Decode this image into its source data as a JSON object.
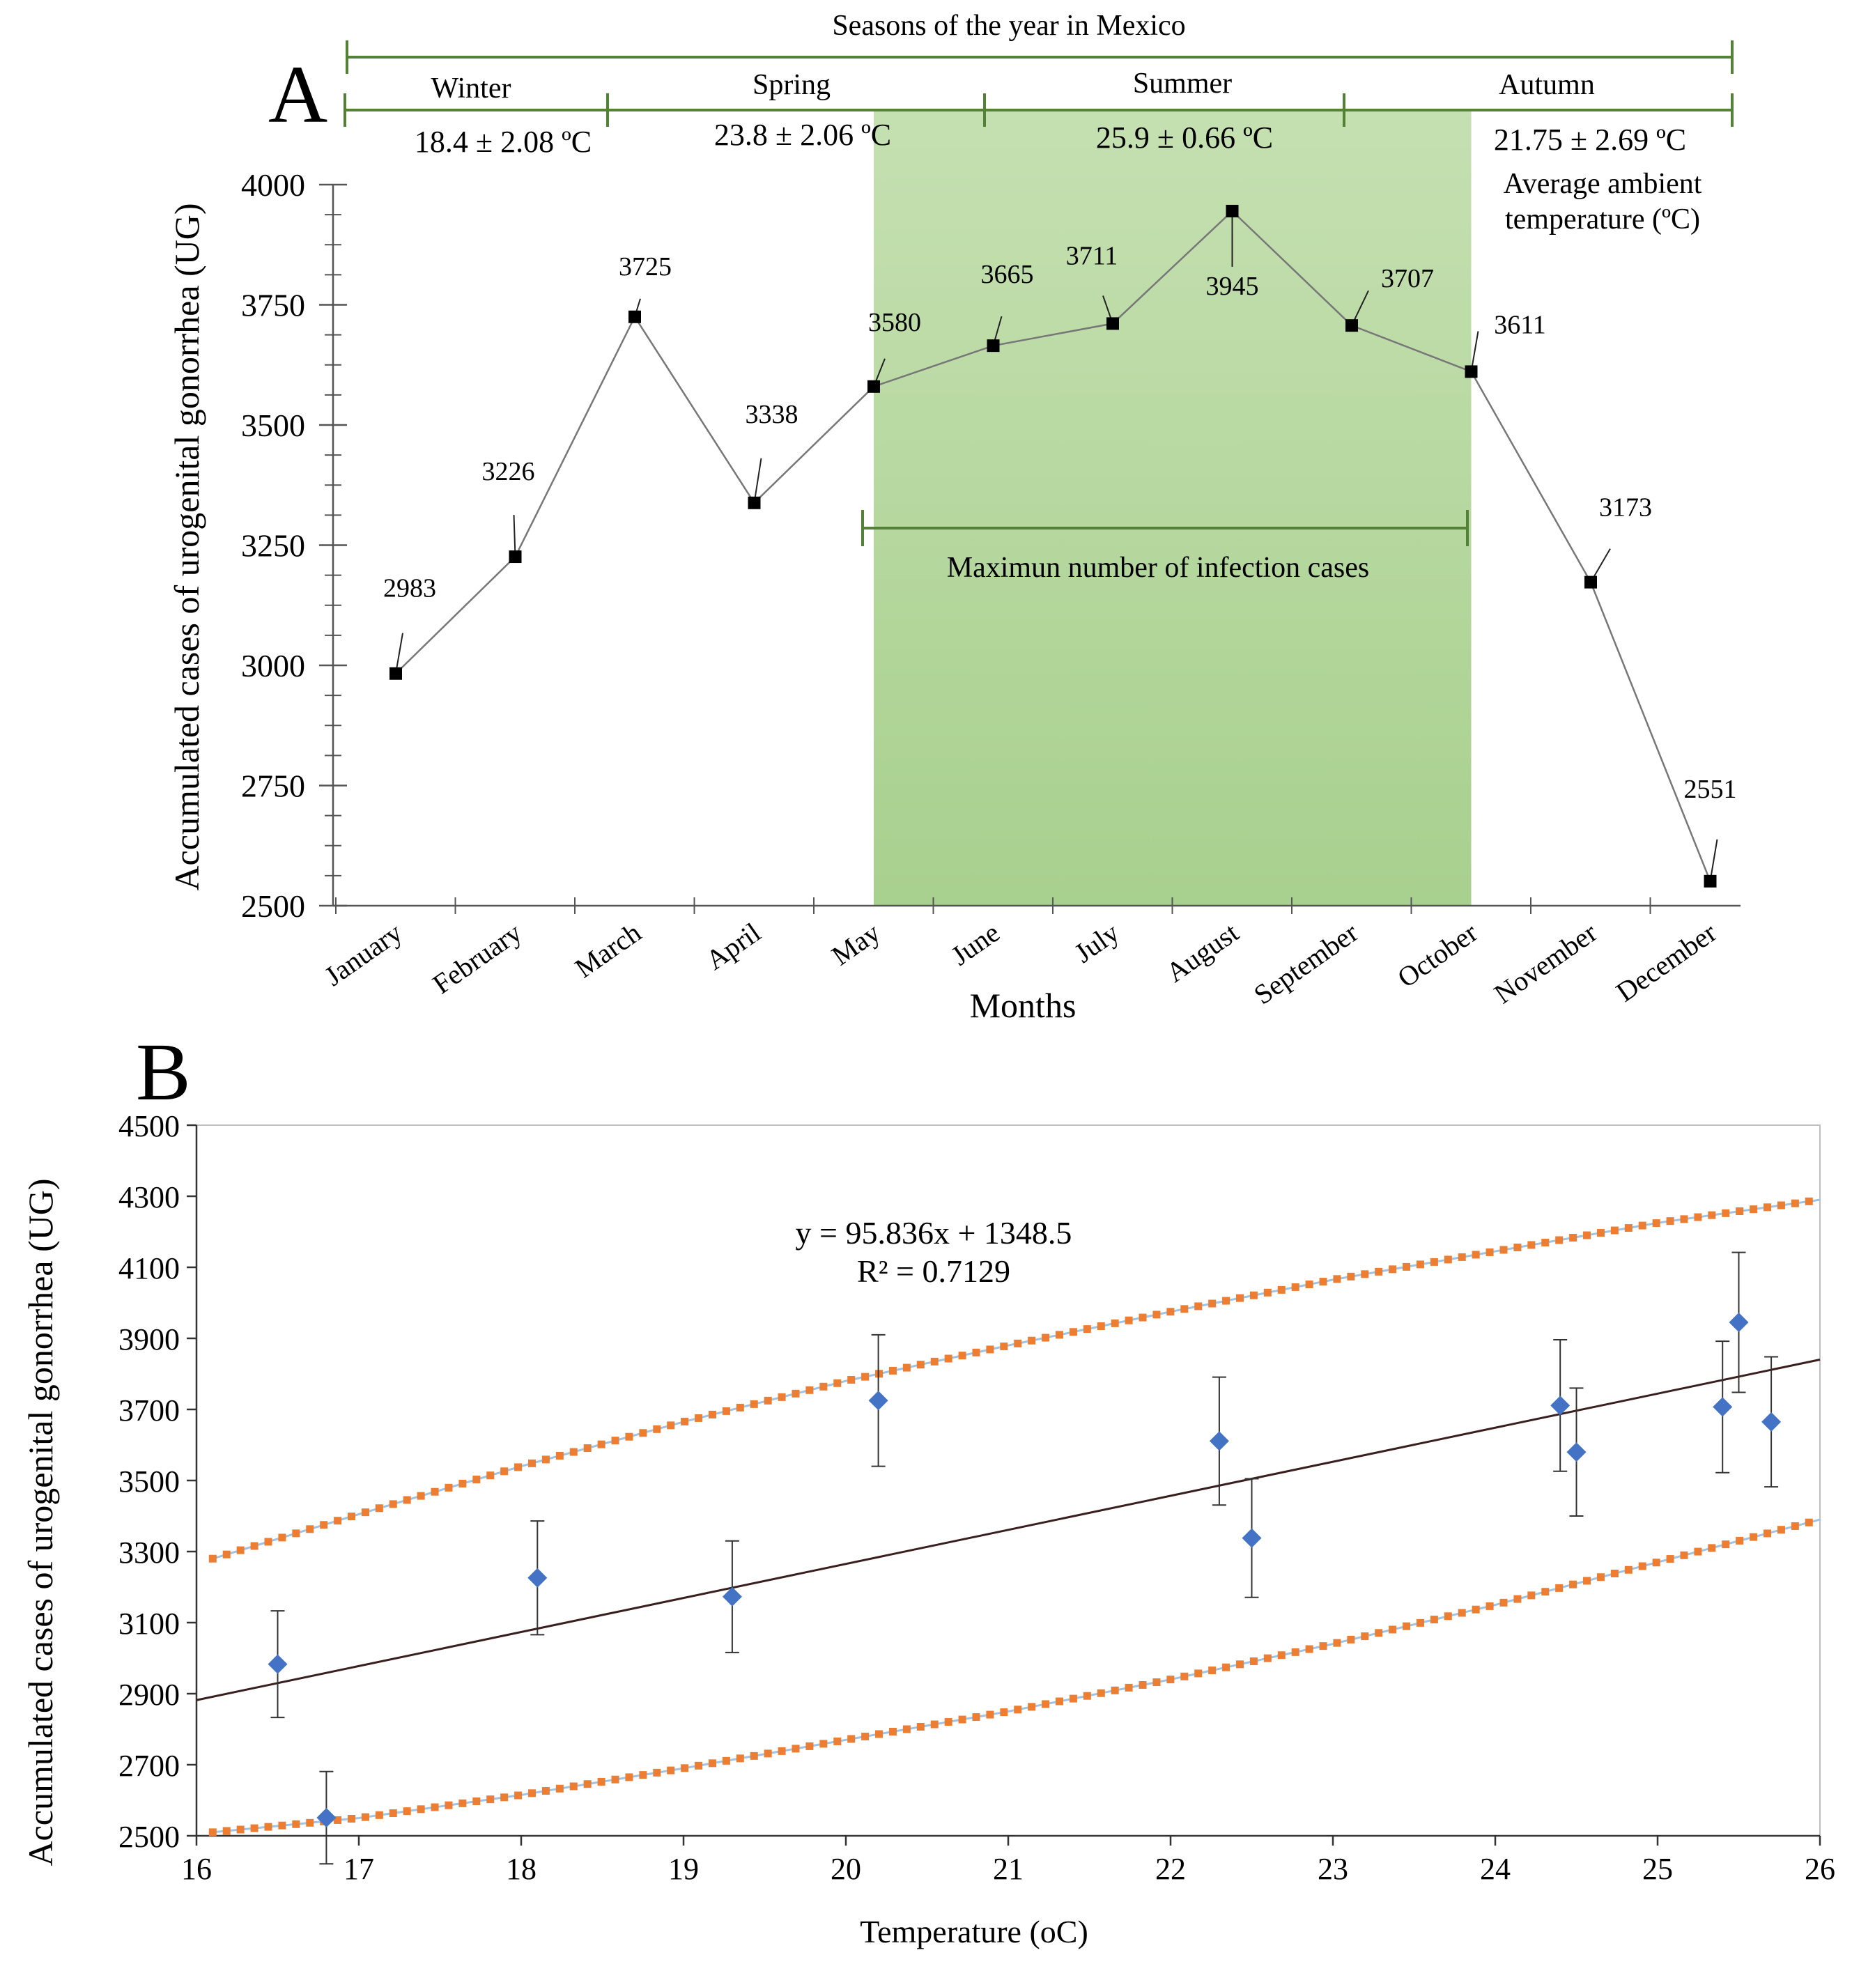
{
  "panel_a": {
    "letter": "A",
    "seasons_title": "Seasons of the year in Mexico",
    "seasons": [
      {
        "name": "Winter",
        "temp": "18.4 ± 2.08 ºC"
      },
      {
        "name": "Spring",
        "temp": "23.8 ± 2.06 ºC"
      },
      {
        "name": "Summer",
        "temp": "25.9 ± 0.66 ºC"
      },
      {
        "name": "Autumn",
        "temp": "21.75 ± 2.69 ºC"
      }
    ],
    "temp_note_line1": "Average ambient",
    "temp_note_line2": "temperature (ºC)",
    "highlight_label": "Maximun number of infection cases",
    "colors": {
      "highlight_top": "#c5e0b1",
      "highlight_bottom": "#a8d08e",
      "season_line": "#538135",
      "series": "#000000",
      "line": "#777777"
    }
  },
  "panel_b": {
    "letter": "B",
    "equation": "y = 95.836x + 1348.5",
    "r2": "R² = 0.7129",
    "colors": {
      "points": "#4472c4",
      "bands": "#ed7d31",
      "band_line": "#9dc3e6",
      "trend": "#3a1f1f"
    }
  },
  "chart_data": [
    {
      "type": "line",
      "title": "",
      "xlabel": "Months",
      "ylabel": "Accumulated cases of urogenital gonorrhea (UG)",
      "categories": [
        "January",
        "February",
        "March",
        "April",
        "May",
        "June",
        "July",
        "August",
        "September",
        "October",
        "November",
        "December"
      ],
      "values": [
        2983,
        3226,
        3725,
        3338,
        3580,
        3665,
        3711,
        3945,
        3707,
        3611,
        3173,
        2551
      ],
      "data_labels": [
        "2983",
        "3226",
        "3725",
        "3338",
        "3580",
        "3665",
        "3711",
        "3945",
        "3707",
        "3611",
        "3173",
        "2551"
      ],
      "ylim": [
        2500,
        4000
      ],
      "yticks": [
        2500,
        2750,
        3000,
        3250,
        3500,
        3750,
        4000
      ],
      "ytick_labels": [
        "2500",
        "2750",
        "3000",
        "3250",
        "3500",
        "3750",
        "4000"
      ],
      "highlight_range": [
        "May",
        "October"
      ]
    },
    {
      "type": "scatter",
      "title": "",
      "xlabel": "Temperature (oC)",
      "ylabel": "Accumulated cases of urogenital gonorrhea (UG)",
      "xlim": [
        16,
        26
      ],
      "ylim": [
        2500,
        4500
      ],
      "xticks": [
        16,
        17,
        18,
        19,
        20,
        21,
        22,
        23,
        24,
        25,
        26
      ],
      "xtick_labels": [
        "16",
        "17",
        "18",
        "19",
        "20",
        "21",
        "22",
        "23",
        "24",
        "25",
        "26"
      ],
      "yticks": [
        2500,
        2700,
        2900,
        3100,
        3300,
        3500,
        3700,
        3900,
        4100,
        4300,
        4500
      ],
      "ytick_labels": [
        "2500",
        "2700",
        "2900",
        "3100",
        "3300",
        "3500",
        "3700",
        "3900",
        "4100",
        "4300",
        "4500"
      ],
      "points": [
        {
          "x": 16.5,
          "y": 2983,
          "err": 150
        },
        {
          "x": 16.8,
          "y": 2551,
          "err": 130
        },
        {
          "x": 18.1,
          "y": 3226,
          "err": 160
        },
        {
          "x": 19.3,
          "y": 3173,
          "err": 157
        },
        {
          "x": 20.2,
          "y": 3725,
          "err": 185
        },
        {
          "x": 22.3,
          "y": 3611,
          "err": 180
        },
        {
          "x": 22.5,
          "y": 3338,
          "err": 167
        },
        {
          "x": 24.4,
          "y": 3711,
          "err": 185
        },
        {
          "x": 24.5,
          "y": 3580,
          "err": 180
        },
        {
          "x": 25.4,
          "y": 3707,
          "err": 185
        },
        {
          "x": 25.5,
          "y": 3945,
          "err": 197
        },
        {
          "x": 25.7,
          "y": 3665,
          "err": 183
        }
      ],
      "trendline": {
        "slope": 95.836,
        "intercept": 1348.5,
        "x_range": [
          16,
          26
        ]
      },
      "upper_band": [
        [
          16.1,
          3280
        ],
        [
          17,
          3405
        ],
        [
          18,
          3540
        ],
        [
          19,
          3665
        ],
        [
          20,
          3780
        ],
        [
          21,
          3880
        ],
        [
          22,
          3975
        ],
        [
          23,
          4065
        ],
        [
          24,
          4145
        ],
        [
          25,
          4225
        ],
        [
          26,
          4290
        ]
      ],
      "lower_band": [
        [
          16.1,
          2510
        ],
        [
          17,
          2550
        ],
        [
          18,
          2615
        ],
        [
          19,
          2690
        ],
        [
          20,
          2770
        ],
        [
          21,
          2850
        ],
        [
          22,
          2940
        ],
        [
          23,
          3040
        ],
        [
          24,
          3150
        ],
        [
          25,
          3270
        ],
        [
          26,
          3390
        ]
      ]
    }
  ]
}
